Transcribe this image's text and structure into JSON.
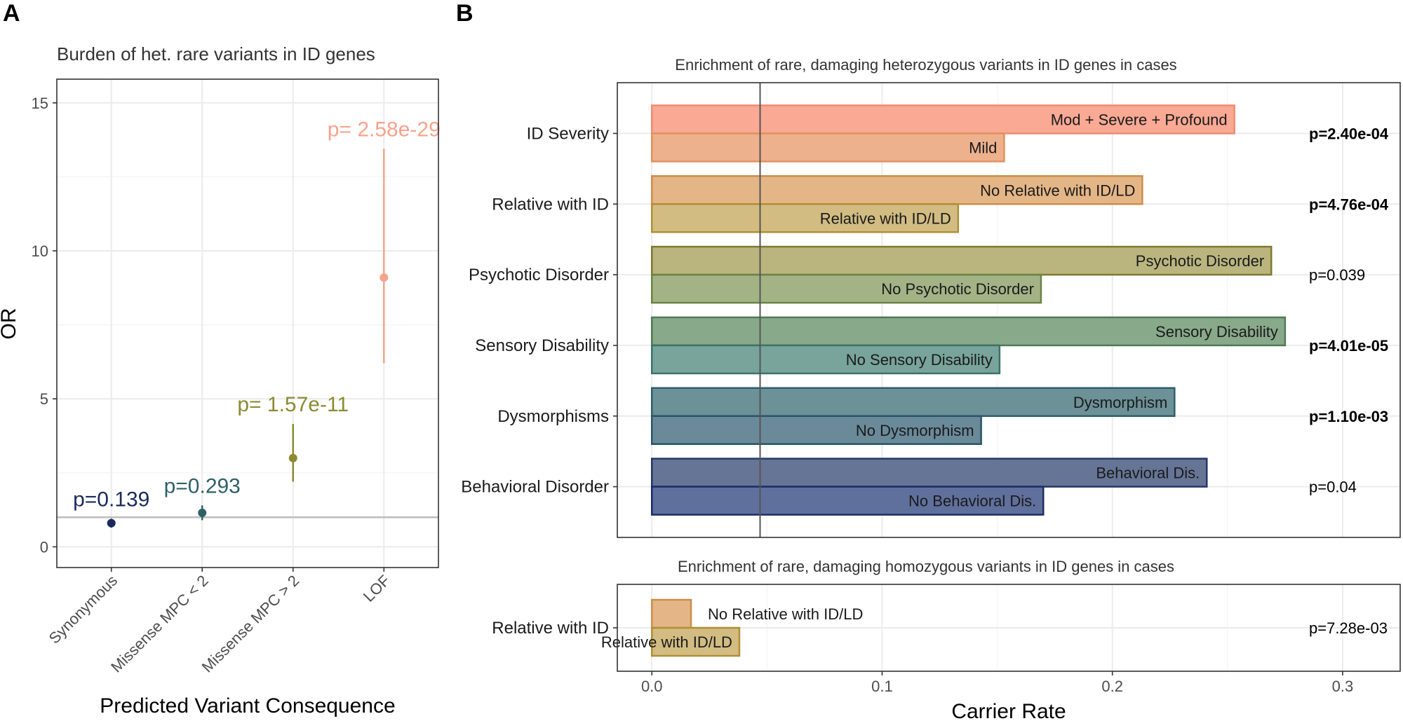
{
  "panel_a_label": "A",
  "panel_b_label": "B",
  "chart_data": [
    {
      "type": "scatter",
      "title": "Burden of het. rare variants in ID genes",
      "xlabel": "Predicted Variant Consequence",
      "ylabel": "OR",
      "ylim": [
        -0.7,
        15.8
      ],
      "yticks": [
        0,
        5,
        10,
        15
      ],
      "reference_line": 1,
      "points": [
        {
          "category": "Synonymous",
          "or": 0.8,
          "lo": 0.65,
          "hi": 0.95,
          "p": "p=0.139",
          "color": "#1b2a5c"
        },
        {
          "category": "Missense MPC < 2",
          "or": 1.15,
          "lo": 0.9,
          "hi": 1.4,
          "p": "p=0.293",
          "color": "#2f6068"
        },
        {
          "category": "Missense MPC > 2",
          "or": 3.0,
          "lo": 2.2,
          "hi": 4.15,
          "p": "p= 1.57e-11",
          "color": "#8c8a32"
        },
        {
          "category": "LOF",
          "or": 9.1,
          "lo": 6.2,
          "hi": 13.45,
          "p": "p= 2.58e-29",
          "color": "#f7a38b"
        }
      ]
    },
    {
      "type": "bar",
      "orientation": "horizontal",
      "title": "Enrichment of rare, damaging heterozygous variants in ID genes in cases",
      "xlabel": "Carrier Rate",
      "xlim": [
        -0.015,
        0.325
      ],
      "xticks": [
        0.0,
        0.1,
        0.2,
        0.3
      ],
      "xtick_labels": [
        "0.0",
        "0.1",
        "0.2",
        "0.3"
      ],
      "reference_line": 0.047,
      "groups": [
        {
          "name": "ID Severity",
          "p": "p=2.40e-04",
          "significant": true,
          "bars": [
            {
              "label": "Mod + Severe + Profound",
              "value": 0.253,
              "fill": "#f9a994",
              "stroke": "#f08c6f"
            },
            {
              "label": "Mild",
              "value": 0.153,
              "fill": "#edb18d",
              "stroke": "#e0915e"
            }
          ]
        },
        {
          "name": "Relative with ID",
          "p": "p=4.76e-04",
          "significant": true,
          "bars": [
            {
              "label": "No Relative with ID/LD",
              "value": 0.213,
              "fill": "#e4b687",
              "stroke": "#cc8e48"
            },
            {
              "label": "Relative with ID/LD",
              "value": 0.133,
              "fill": "#d2bc82",
              "stroke": "#b08f33"
            }
          ]
        },
        {
          "name": "Psychotic Disorder",
          "p": "p=0.039",
          "significant": false,
          "bars": [
            {
              "label": "Psychotic Disorder",
              "value": 0.269,
              "fill": "#bab57f",
              "stroke": "#7e7a2e"
            },
            {
              "label": "No Psychotic Disorder",
              "value": 0.169,
              "fill": "#a3b386",
              "stroke": "#6a8345"
            }
          ]
        },
        {
          "name": "Sensory Disability",
          "p": "p=4.01e-05",
          "significant": true,
          "bars": [
            {
              "label": "Sensory Disability",
              "value": 0.275,
              "fill": "#88a98a",
              "stroke": "#4f7a55"
            },
            {
              "label": "No Sensory Disability",
              "value": 0.151,
              "fill": "#78a49c",
              "stroke": "#3c7366"
            }
          ]
        },
        {
          "name": "Dysmorphisms",
          "p": "p=1.10e-03",
          "significant": true,
          "bars": [
            {
              "label": "Dysmorphism",
              "value": 0.227,
              "fill": "#6c9197",
              "stroke": "#2f5e68"
            },
            {
              "label": "No Dysmorphism",
              "value": 0.143,
              "fill": "#6a8a9a",
              "stroke": "#2a5468"
            }
          ]
        },
        {
          "name": "Behavioral Disorder",
          "p": "p=0.04",
          "significant": false,
          "bars": [
            {
              "label": "Behavioral Dis.",
              "value": 0.241,
              "fill": "#667595",
              "stroke": "#243864"
            },
            {
              "label": "No Behavioral Dis.",
              "value": 0.17,
              "fill": "#60709c",
              "stroke": "#1d2c66"
            }
          ]
        }
      ]
    },
    {
      "type": "bar",
      "orientation": "horizontal",
      "title": "Enrichment of rare, damaging homozygous variants in ID genes in cases",
      "xlim": [
        -0.015,
        0.325
      ],
      "groups": [
        {
          "name": "Relative with ID",
          "p": "p=7.28e-03",
          "significant": false,
          "bars": [
            {
              "label": "No Relative with ID/LD",
              "value": 0.017,
              "fill": "#e4b687",
              "stroke": "#cc8e48"
            },
            {
              "label": "Relative with ID/LD",
              "value": 0.038,
              "fill": "#d2bc82",
              "stroke": "#b08f33"
            }
          ]
        }
      ]
    }
  ]
}
